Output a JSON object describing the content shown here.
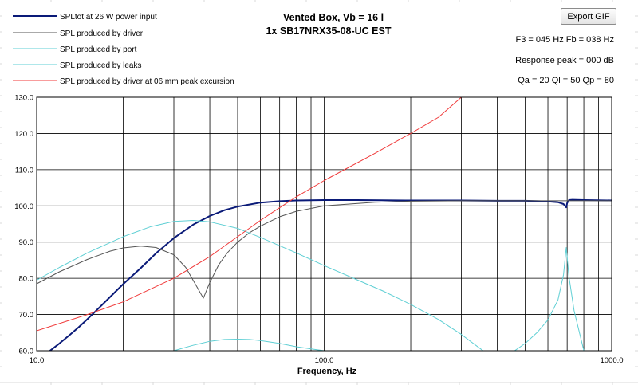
{
  "colors": {
    "total": "#0a1a78",
    "driver": "#555555",
    "port": "#5fcfd4",
    "leaks": "#5fcfd4",
    "excursion": "#f03a3a",
    "grid": "#000000",
    "sheet_grid": "#d9d9d9"
  },
  "chart": {
    "title_line1": "Vented Box, Vb = 16 l",
    "title_line2": "1x SB17NRX35-08-UC EST",
    "info_f3_fb": "F3 = 045 Hz  Fb = 038 Hz",
    "info_peak": "Response peak = 000 dB",
    "info_q": "Qa = 20  Ql = 50  Qp = 80",
    "export_label": "Export GIF"
  },
  "chart_data": {
    "type": "line",
    "title": "Vented Box, Vb = 16 l",
    "subtitle": "1x SB17NRX35-08-UC EST",
    "xlabel": "Frequency, Hz",
    "ylabel": "",
    "x_scale": "log",
    "xlim": [
      10,
      1000
    ],
    "ylim": [
      60,
      130
    ],
    "x_tick_labels": [
      "10.0",
      "100.0",
      "1000.0"
    ],
    "y_ticks": [
      60,
      70,
      80,
      90,
      100,
      110,
      120,
      130
    ],
    "y_tick_labels": [
      "60.0",
      "70.0",
      "80.0",
      "90.0",
      "100.0",
      "110.0",
      "120.0",
      "130.0"
    ],
    "grid": true,
    "legend_position": "top-left",
    "series": [
      {
        "name": "SPLtot at 26 W power input",
        "x": [
          10,
          11,
          12,
          13,
          14,
          15,
          17,
          20,
          23,
          26,
          30,
          35,
          40,
          45,
          50,
          60,
          70,
          80,
          100,
          130,
          200,
          300,
          400,
          500,
          600,
          650,
          680,
          695,
          700,
          710,
          730,
          800,
          1000
        ],
        "y": [
          57.5,
          59.7,
          62.0,
          64.3,
          66.5,
          68.7,
          72.9,
          78.4,
          82.8,
          86.9,
          91.1,
          94.8,
          97.2,
          98.8,
          99.8,
          100.9,
          101.3,
          101.5,
          101.6,
          101.6,
          101.5,
          101.5,
          101.4,
          101.4,
          101.2,
          101.0,
          100.5,
          99.6,
          100.8,
          101.6,
          101.7,
          101.6,
          101.5
        ]
      },
      {
        "name": "SPL produced by driver",
        "x": [
          10,
          12,
          15,
          18,
          20,
          23,
          26,
          30,
          33,
          36,
          38,
          40,
          43,
          46,
          50,
          55,
          60,
          70,
          80,
          100,
          150,
          200,
          300,
          500,
          700,
          1000
        ],
        "y": [
          78.5,
          81.8,
          85.2,
          87.5,
          88.4,
          88.9,
          88.5,
          86.5,
          83.0,
          77.8,
          74.5,
          78.8,
          83.8,
          87.0,
          90.0,
          92.6,
          94.4,
          97.0,
          98.5,
          100.0,
          101.0,
          101.3,
          101.4,
          101.4,
          101.4,
          101.4
        ]
      },
      {
        "name": "SPL produced by port",
        "x": [
          30,
          35,
          40,
          45,
          50,
          55,
          60,
          70,
          80,
          90,
          100
        ],
        "y": [
          60.0,
          61.5,
          62.6,
          63.1,
          63.2,
          63.1,
          62.8,
          62.0,
          61.1,
          60.5,
          60.0
        ]
      },
      {
        "name": "SPL produced by leaks",
        "x": [
          10,
          12,
          15,
          20,
          25,
          30,
          35,
          40,
          50,
          60,
          70,
          80,
          100,
          130,
          160,
          200,
          250,
          300,
          350,
          400,
          450,
          500,
          550,
          600,
          650,
          680,
          695,
          710,
          740,
          800
        ],
        "y": [
          79.5,
          83.0,
          87.0,
          91.5,
          94.3,
          95.7,
          96.0,
          95.6,
          93.8,
          91.3,
          89.0,
          87.0,
          83.5,
          79.6,
          76.5,
          72.8,
          68.6,
          64.5,
          60.5,
          57.0,
          59.5,
          62.0,
          65.0,
          68.5,
          74.0,
          81.0,
          88.5,
          80.5,
          71.0,
          60.0
        ]
      },
      {
        "name": "SPL produced by driver at 06 mm peak excursion",
        "x": [
          10,
          15,
          20,
          30,
          40,
          50,
          60,
          70,
          80,
          100,
          150,
          200,
          250,
          300
        ],
        "y": [
          65.5,
          70.0,
          73.5,
          80.0,
          86.0,
          91.5,
          96.0,
          99.5,
          102.5,
          107.0,
          114.5,
          120.0,
          124.5,
          130.0
        ]
      }
    ]
  }
}
